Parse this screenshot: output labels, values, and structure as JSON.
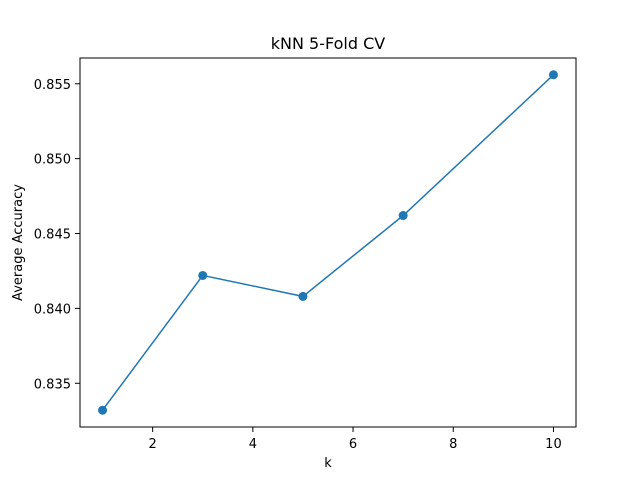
{
  "chart_data": {
    "type": "line",
    "title": "kNN 5-Fold CV",
    "xlabel": "k",
    "ylabel": "Average Accuracy",
    "x": [
      1,
      3,
      5,
      7,
      10
    ],
    "series": [
      {
        "values": [
          0.8332,
          0.8422,
          0.8408,
          0.8462,
          0.8556
        ],
        "color": "#1f77b4",
        "marker": "circle"
      }
    ],
    "xlim": [
      0.55,
      10.45
    ],
    "ylim": [
      0.83208,
      0.85672
    ],
    "xticks": [
      2,
      4,
      6,
      8,
      10
    ],
    "xtick_labels": [
      "2",
      "4",
      "6",
      "8",
      "10"
    ],
    "yticks": [
      0.835,
      0.84,
      0.845,
      0.85,
      0.855
    ],
    "ytick_labels": [
      "0.835",
      "0.840",
      "0.845",
      "0.850",
      "0.855"
    ],
    "grid": false,
    "legend": false
  }
}
